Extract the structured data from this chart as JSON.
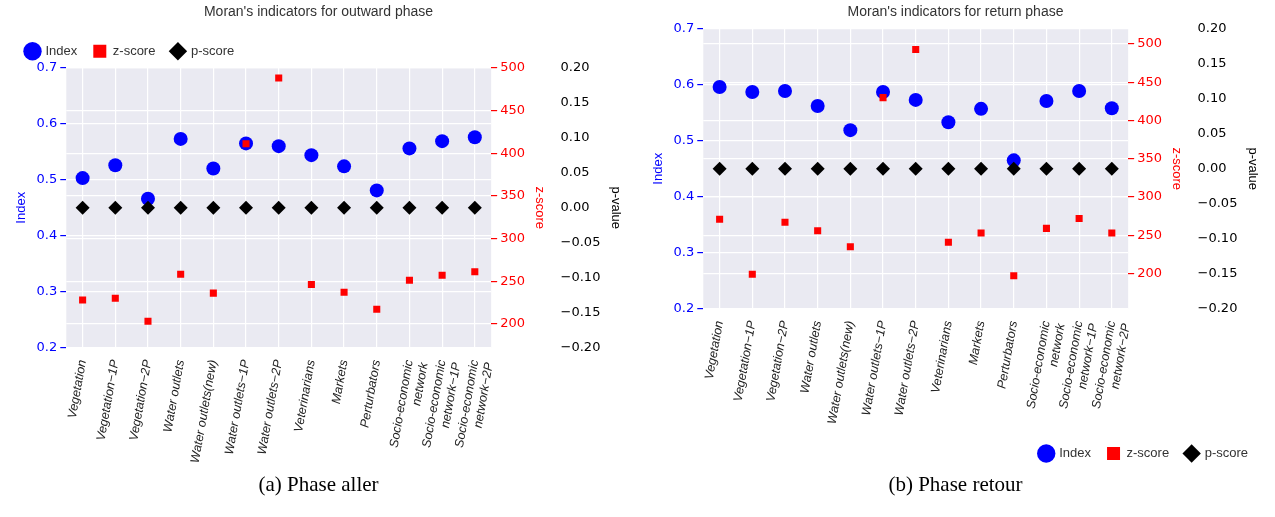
{
  "chart_data": [
    {
      "type": "scatter",
      "title": "Moran's indicators for outward phase",
      "annotations": [
        "(a) Phase aller"
      ],
      "categories": [
        "Vegetation",
        "Vegetation−1P",
        "Vegetation−2P",
        "Water outlets",
        "Water outlets(new)",
        "Water outlets−1P",
        "Water outlets−2P",
        "Veterinarians",
        "Markets",
        "Perturbators",
        "Socio-economic\nnetwork",
        "Socio-economic\nnetwork−1P",
        "Socio-economic\nnetwork−2P"
      ],
      "ylabel": "Index",
      "y2label": "z-score",
      "y3label": "p-value",
      "ylim": [
        0.2,
        0.7
      ],
      "yticks": [
        0.2,
        0.3,
        0.4,
        0.5,
        0.6,
        0.7
      ],
      "y2lim": [
        172,
        500
      ],
      "y2ticks": [
        200,
        250,
        300,
        350,
        400,
        450,
        500
      ],
      "y3lim": [
        -0.2,
        0.2
      ],
      "y3ticks": [
        {
          "value": -0.2,
          "label": "−0.20"
        },
        {
          "value": -0.15,
          "label": "−0.15"
        },
        {
          "value": -0.1,
          "label": "−0.10"
        },
        {
          "value": -0.05,
          "label": "−0.05"
        },
        {
          "value": 0,
          "label": "0.00"
        },
        {
          "value": 0.05,
          "label": "0.05"
        },
        {
          "value": 0.1,
          "label": "0.10"
        },
        {
          "value": 0.15,
          "label": "0.15"
        },
        {
          "value": 0.2,
          "label": "0.20"
        }
      ],
      "grid": true,
      "legend": "top left",
      "series": [
        {
          "name": "Index",
          "color": "#0000ff",
          "marker": "circle",
          "axis": "y",
          "values": [
            0.503,
            0.526,
            0.466,
            0.573,
            0.52,
            0.565,
            0.56,
            0.544,
            0.524,
            0.481,
            0.556,
            0.569,
            0.576
          ]
        },
        {
          "name": "z-score",
          "color": "#ff0000",
          "marker": "square",
          "axis": "y2",
          "values": [
            228,
            230,
            203,
            258,
            236,
            411,
            488,
            246,
            237,
            217,
            251,
            257,
            261
          ]
        },
        {
          "name": "p-score",
          "color": "#000000",
          "marker": "diamond",
          "axis": "y3",
          "values": [
            0,
            0,
            0,
            0,
            0,
            0,
            0,
            0,
            0,
            0,
            0,
            0,
            0
          ]
        }
      ]
    },
    {
      "type": "scatter",
      "title": "Moran's indicators for return phase",
      "annotations": [
        "(b) Phase retour"
      ],
      "categories": [
        "Vegetation",
        "Vegetation−1P",
        "Vegetation−2P",
        "Water outlets",
        "Water outlets(new)",
        "Water outlets−1P",
        "Water outlets−2P",
        "Veterinarians",
        "Markets",
        "Perturbators",
        "Socio-economic\nnetwork",
        "Socio-economic\nnetwork−1P",
        "Socio-economic\nnetwork−2P"
      ],
      "ylabel": "Index",
      "y2label": "z-score",
      "y3label": "p-value",
      "ylim": [
        0.2,
        0.7
      ],
      "yticks": [
        0.2,
        0.3,
        0.4,
        0.5,
        0.6,
        0.7
      ],
      "y2lim": [
        154,
        520
      ],
      "y2ticks": [
        200,
        250,
        300,
        350,
        400,
        450,
        500
      ],
      "y3lim": [
        -0.2,
        0.2
      ],
      "y3ticks": [
        {
          "value": -0.2,
          "label": "−0.20"
        },
        {
          "value": -0.15,
          "label": "−0.15"
        },
        {
          "value": -0.1,
          "label": "−0.10"
        },
        {
          "value": -0.05,
          "label": "−0.05"
        },
        {
          "value": 0,
          "label": "0.00"
        },
        {
          "value": 0.05,
          "label": "0.05"
        },
        {
          "value": 0.1,
          "label": "0.10"
        },
        {
          "value": 0.15,
          "label": "0.15"
        },
        {
          "value": 0.2,
          "label": "0.20"
        }
      ],
      "grid": true,
      "legend": "bottom right",
      "series": [
        {
          "name": "Index",
          "color": "#0000ff",
          "marker": "circle",
          "axis": "y",
          "values": [
            0.596,
            0.587,
            0.589,
            0.562,
            0.519,
            0.587,
            0.573,
            0.533,
            0.557,
            0.465,
            0.571,
            0.589,
            0.558
          ]
        },
        {
          "name": "z-score",
          "color": "#ff0000",
          "marker": "square",
          "axis": "y2",
          "values": [
            271,
            199,
            267,
            256,
            235,
            430,
            493,
            241,
            253,
            197,
            259,
            272,
            253
          ]
        },
        {
          "name": "p-score",
          "color": "#000000",
          "marker": "diamond",
          "axis": "y3",
          "values": [
            0,
            0,
            0,
            0,
            0,
            0,
            0,
            0,
            0,
            0,
            0,
            0,
            0
          ]
        }
      ]
    }
  ]
}
